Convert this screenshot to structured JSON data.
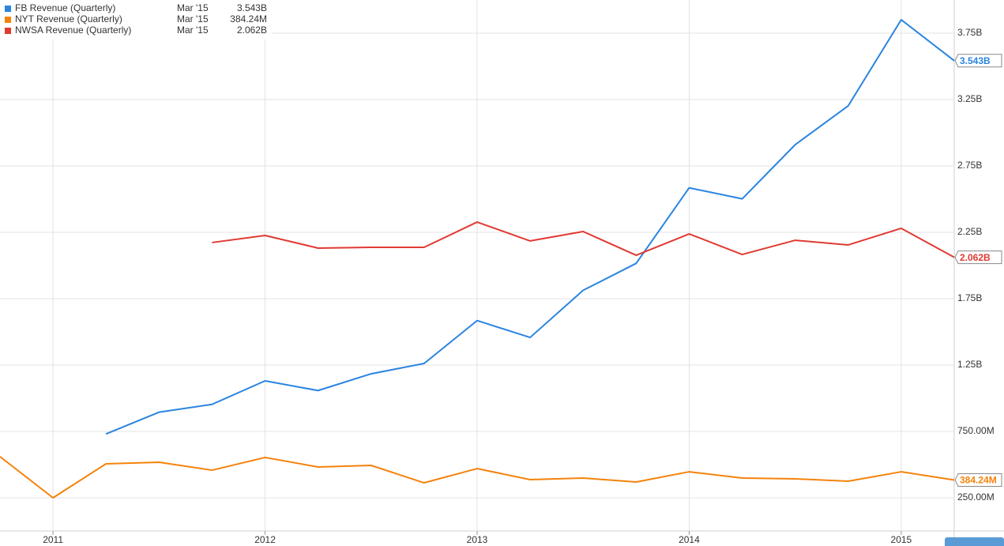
{
  "chart_data": {
    "type": "line",
    "x": [
      2010.75,
      2011.0,
      2011.25,
      2011.5,
      2011.75,
      2012.0,
      2012.25,
      2012.5,
      2012.75,
      2013.0,
      2013.25,
      2013.5,
      2013.75,
      2014.0,
      2014.25,
      2014.5,
      2014.75,
      2015.0,
      2015.25
    ],
    "xlim": [
      2010.75,
      2015.25
    ],
    "xticks": [
      2011,
      2012,
      2013,
      2014,
      2015
    ],
    "ylim": [
      0,
      4.0
    ],
    "yticks": [
      {
        "value": 0.25,
        "label": "250.00M"
      },
      {
        "value": 0.75,
        "label": "750.00M"
      },
      {
        "value": 1.25,
        "label": "1.25B"
      },
      {
        "value": 1.75,
        "label": "1.75B"
      },
      {
        "value": 2.25,
        "label": "2.25B"
      },
      {
        "value": 2.75,
        "label": "2.75B"
      },
      {
        "value": 3.25,
        "label": "3.25B"
      },
      {
        "value": 3.75,
        "label": "3.75B"
      }
    ],
    "grid": true,
    "legend": "top-left",
    "series": [
      {
        "name": "FB Revenue (Quarterly)",
        "color": "#2a84e0",
        "last_date": "Mar '15",
        "last_value_label": "3.543B",
        "values": [
          null,
          null,
          0.731,
          0.895,
          0.954,
          1.131,
          1.058,
          1.184,
          1.262,
          1.585,
          1.458,
          1.813,
          2.016,
          2.585,
          2.502,
          2.91,
          3.203,
          3.851,
          3.543
        ]
      },
      {
        "name": "NYT Revenue (Quarterly)",
        "color": "#f5820b",
        "last_date": "Mar '15",
        "last_value_label": "384.24M",
        "values": [
          0.56,
          0.25,
          0.506,
          0.518,
          0.458,
          0.554,
          0.482,
          0.494,
          0.363,
          0.47,
          0.387,
          0.399,
          0.369,
          0.446,
          0.399,
          0.393,
          0.375,
          0.446,
          0.38424
        ]
      },
      {
        "name": "NWSA Revenue (Quarterly)",
        "color": "#e03a32",
        "last_date": "Mar '15",
        "last_value_label": "2.062B",
        "values": [
          null,
          null,
          null,
          null,
          2.173,
          2.226,
          2.131,
          2.137,
          2.137,
          2.327,
          2.185,
          2.256,
          2.077,
          2.238,
          2.083,
          2.19,
          2.155,
          2.28,
          2.062
        ]
      }
    ]
  }
}
